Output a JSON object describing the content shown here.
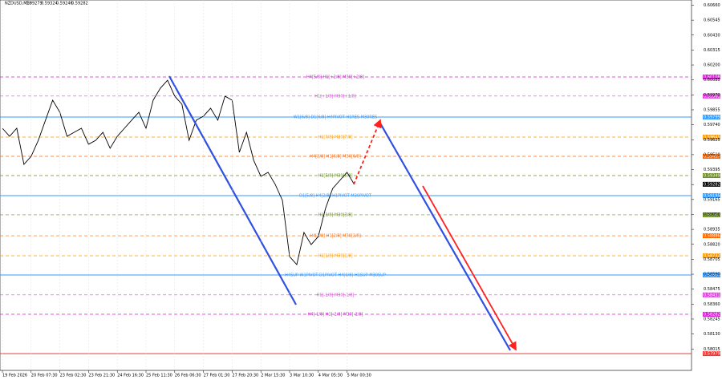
{
  "chart_data": {
    "type": "line",
    "header": {
      "symbol": "NZDUSD,M30",
      "open": 0.59279,
      "high": 0.59324,
      "low": 0.59246,
      "close": 0.59282
    },
    "categories": [
      "19 Feb 2026",
      null,
      null,
      null,
      "20 Feb 07:30",
      null,
      null,
      null,
      "23 Feb 02:30",
      null,
      null,
      null,
      "23 Feb 21:30",
      null,
      null,
      null,
      "24 Feb 16:30",
      null,
      null,
      null,
      "25 Feb 11:30",
      null,
      null,
      null,
      "26 Feb 06:30",
      null,
      null,
      null,
      "27 Feb 01:30",
      null,
      null,
      null,
      "27 Feb 20:30",
      null,
      null,
      null,
      "2 Mar 15:30",
      null,
      null,
      null,
      "3 Mar 10:30",
      null,
      null,
      null,
      "4 Mar 05:30",
      null,
      null,
      null,
      "5 Mar 00:30",
      null
    ],
    "series": [
      {
        "color": "#000000",
        "values": [
          0.59713,
          0.59651,
          0.59713,
          0.59435,
          0.59497,
          0.5962,
          0.59775,
          0.59929,
          0.59836,
          0.59651,
          0.59682,
          0.59713,
          0.5959,
          0.5962,
          0.59682,
          0.59559,
          0.59651,
          0.59713,
          0.59775,
          0.59836,
          0.59713,
          0.59929,
          0.60021,
          0.60083,
          0.5996,
          0.59898,
          0.5962,
          0.59775,
          0.59806,
          0.59867,
          0.59775,
          0.5996,
          0.59929,
          0.59528,
          0.59682,
          0.59466,
          0.59343,
          0.59374,
          0.59281,
          0.59158,
          0.58726,
          0.58664,
          0.58911,
          0.58818,
          0.5888,
          0.59096,
          0.5925,
          0.59312,
          0.59374,
          0.59282
        ]
      }
    ],
    "ylim": [
      0.5785,
      0.607
    ],
    "yticks": [
      {
        "value": 0.6066,
        "label": "0.60660"
      },
      0.60545,
      {
        "value": 0.6043,
        "label": "0.60430"
      },
      0.60315,
      {
        "value": 0.602,
        "label": "0.60200"
      },
      0.60085,
      {
        "value": 0.5997,
        "label": "0.59970"
      },
      0.59855,
      {
        "value": 0.5974,
        "label": "0.59740"
      },
      0.59625,
      {
        "value": 0.5951,
        "label": "0.59510"
      },
      0.59395,
      {
        "value": 0.5928,
        "label": "0.59280"
      },
      0.59165,
      {
        "value": 0.5905,
        "label": "0.59050"
      },
      0.58935,
      {
        "value": 0.5882,
        "label": "0.58820"
      },
      0.58705,
      {
        "value": 0.5859,
        "label": "0.58590"
      },
      0.58475,
      {
        "value": 0.5836,
        "label": "0.58360"
      },
      0.58245,
      {
        "value": 0.5813,
        "label": "0.58130"
      },
      0.58015
    ],
    "levels": [
      {
        "label": "H4[5/8] H1[+2/8] M30[+2/8]",
        "price": 0.60108,
        "color": "#d020d0",
        "dashed": true
      },
      {
        "label": "H1[+1/8] M30[+1/8]",
        "price": 0.59961,
        "color": "#e040e0",
        "dashed": true
      },
      {
        "label": "W1[6/8] D1[6/8] H4PIVOT H1RES M30RES",
        "price": 0.59799,
        "color": "#3399ff",
        "dashed": false
      },
      {
        "label": "H1[7/8] M30[7/8]",
        "price": 0.59645,
        "color": "#ff9900",
        "dashed": true
      },
      {
        "label": "H4[3/8] H1[6/8] M30[6/8]",
        "price": 0.59497,
        "color": "#ff6600",
        "dashed": true
      },
      {
        "label": "H1[5/8] M30[5/8]",
        "price": 0.59349,
        "color": "#6b8e23",
        "dashed": true
      },
      {
        "label": "D1[5/8] H4[2/8] H1PIVOT M30PIVOT",
        "price": 0.59195,
        "color": "#3399ff",
        "dashed": false
      },
      {
        "label": "H1[3/8] M30[3/8]",
        "price": 0.59047,
        "color": "#6b8e23",
        "dashed": true
      },
      {
        "label": "H4[1/8] H1[2/8] M30[2/8]",
        "price": 0.58886,
        "color": "#ff6600",
        "dashed": true
      },
      {
        "label": "H1[1/8] M30[1/8]",
        "price": 0.58732,
        "color": "#ff9900",
        "dashed": true
      },
      {
        "label": "H4SUP W1PIVOT D1PIVOT H4[0/8] H1SUP M30SUP",
        "price": 0.58584,
        "color": "#3399ff",
        "dashed": false
      },
      {
        "label": "H1[-1/8] M30[-1/8]",
        "price": 0.58431,
        "color": "#e040e0",
        "dashed": true
      },
      {
        "label": "H4[-1/8] H1[-2/8] M30[-2/8]",
        "price": 0.58282,
        "color": "#d020d0",
        "dashed": true
      },
      {
        "price": 0.57979,
        "color": "#ff3030",
        "dashed": false
      }
    ]
  }
}
